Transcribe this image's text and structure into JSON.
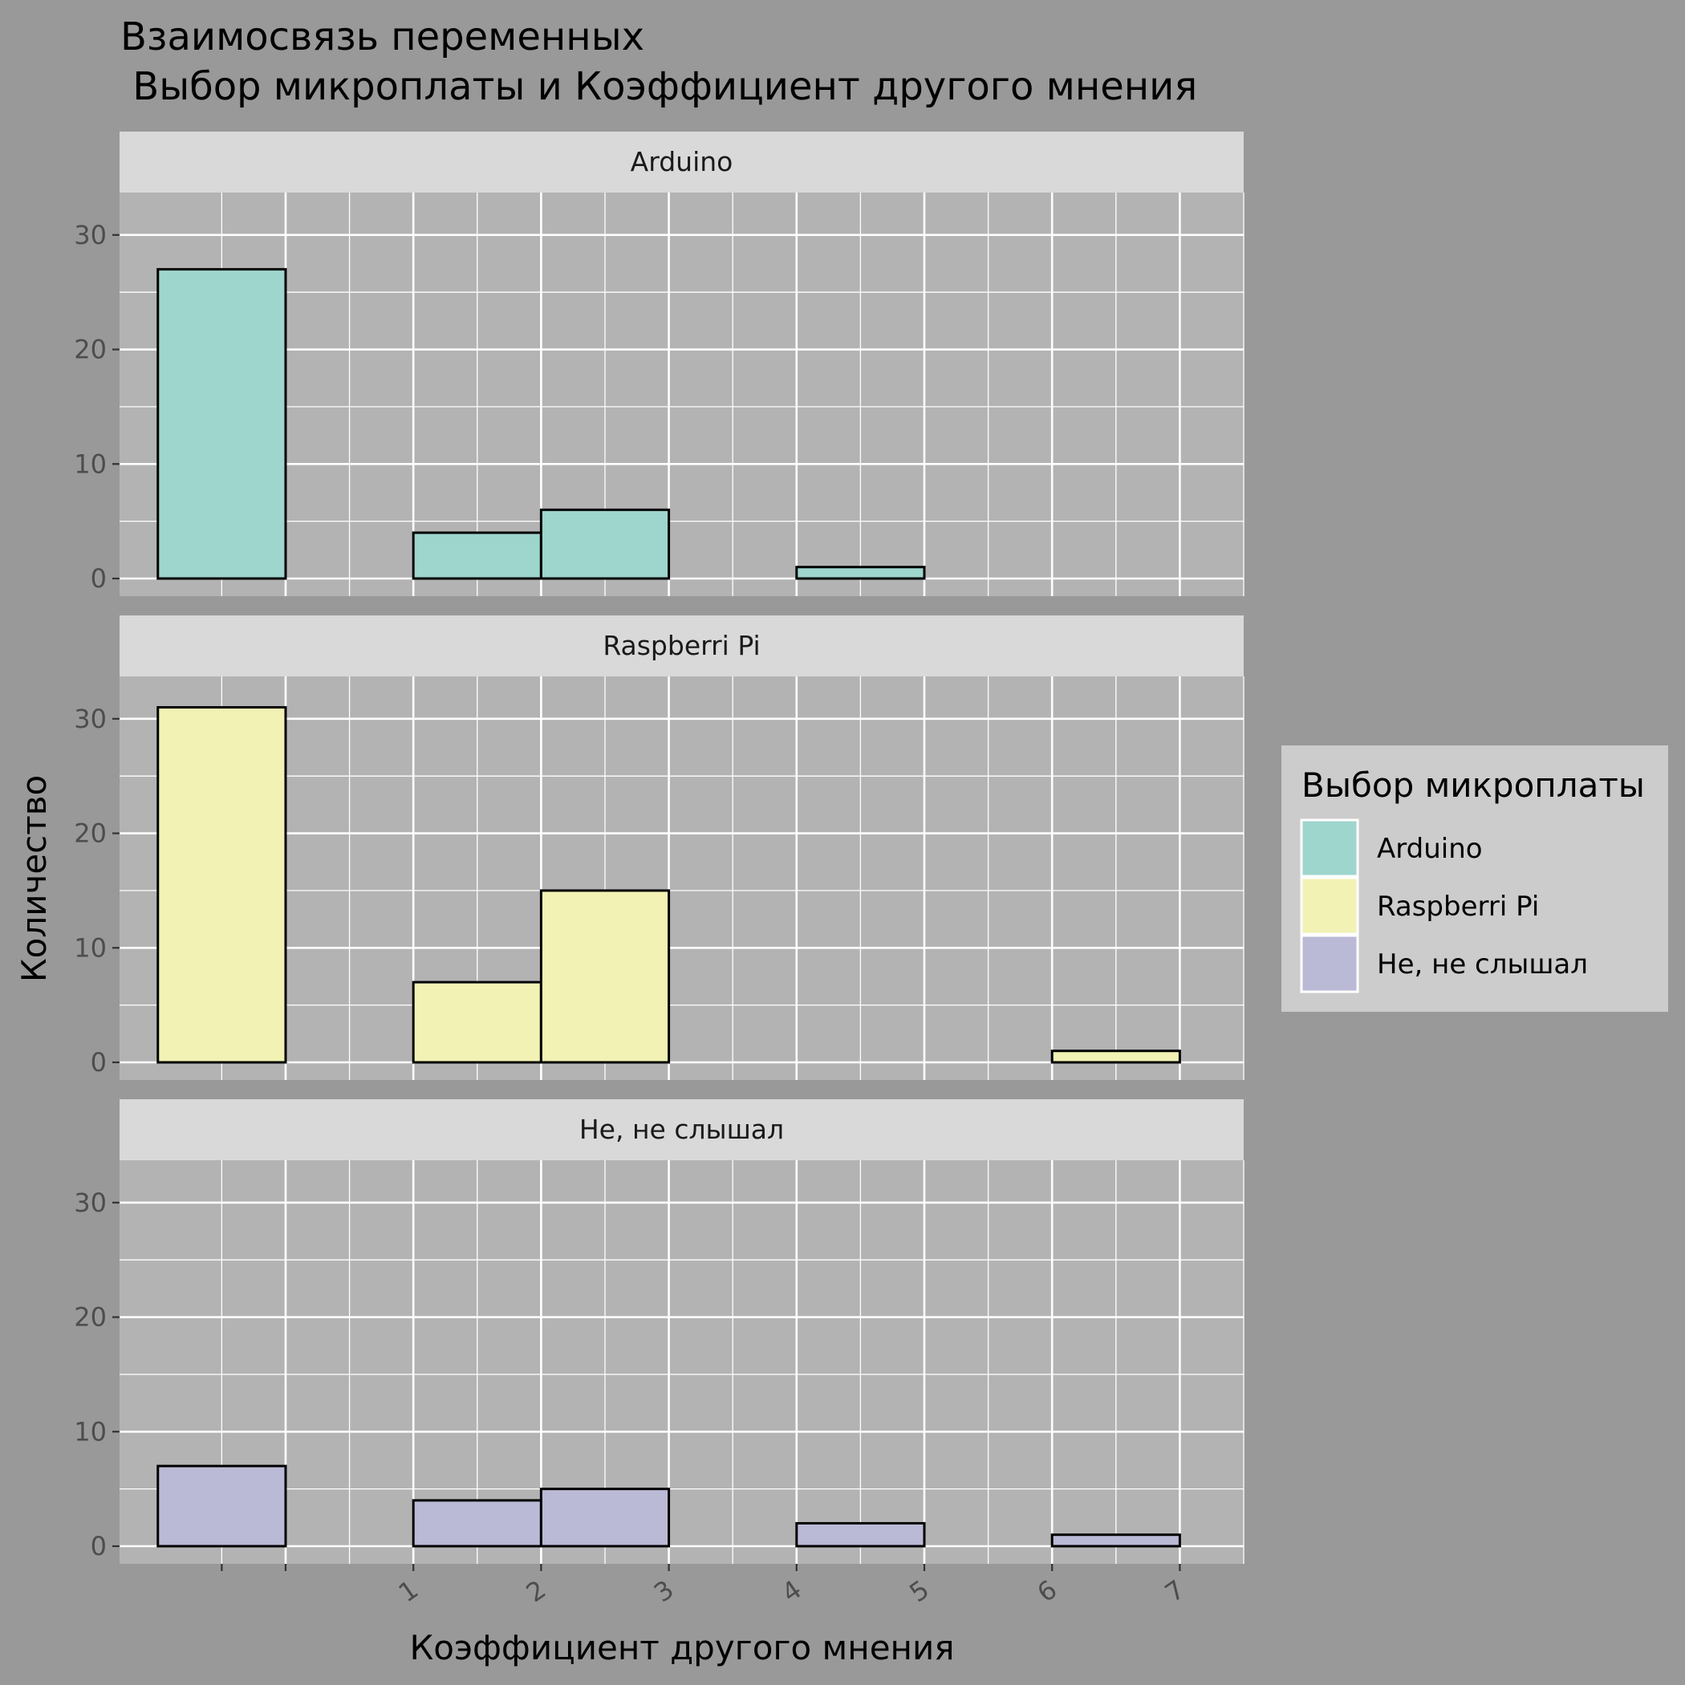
{
  "chart_data": {
    "type": "bar",
    "title_line1": "Взаимосвязь переменных",
    "title_line2": " Выбор микроплаты и Коэффициент другого мнения",
    "xlabel": "Коэффициент другого мнения",
    "ylabel": "Количество",
    "x_ticks": [
      "1",
      "2",
      "3",
      "4",
      "5",
      "6",
      "7"
    ],
    "y_ticks": [
      0,
      10,
      20,
      30
    ],
    "ylim": [
      0,
      33.7
    ],
    "xlim": [
      -1.3,
      7.5
    ],
    "bin_width": 1,
    "bin_centers": [
      -0.5,
      0.5,
      1.5,
      2.5,
      3.5,
      4.5,
      5.5,
      6.5,
      7.5
    ],
    "grid": true,
    "legend": {
      "title": "Выбор микроплаты",
      "placement": "right"
    },
    "series": [
      {
        "name": "Arduino",
        "color": "#9ed5cc",
        "values": [
          27,
          0,
          4,
          6,
          0,
          1,
          0,
          0
        ]
      },
      {
        "name": "Raspberri Pi",
        "color": "#f1f2b4",
        "values": [
          31,
          0,
          7,
          15,
          0,
          0,
          0,
          1
        ]
      },
      {
        "name": "Не, не слышал",
        "color": "#bbbad6",
        "values": [
          7,
          0,
          4,
          5,
          0,
          2,
          0,
          1
        ]
      }
    ]
  }
}
